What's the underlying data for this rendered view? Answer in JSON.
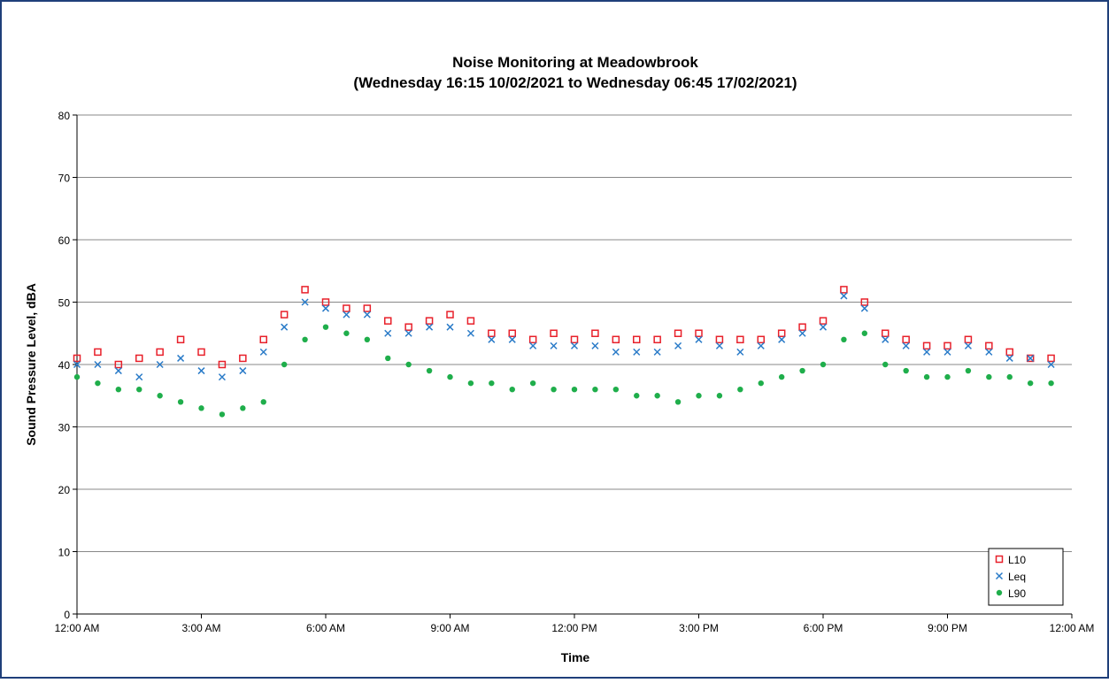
{
  "chart_data": {
    "type": "scatter",
    "title": "Noise Monitoring at Meadowbrook",
    "subtitle": "(Wednesday 16:15 10/02/2021 to Wednesday 06:45 17/02/2021)",
    "x_label": "Time",
    "y_label": "Sound Pressure Level, dBA",
    "xlim": [
      0,
      24
    ],
    "ylim": [
      0,
      80
    ],
    "xticks": [
      {
        "value": 0,
        "label": "12:00 AM"
      },
      {
        "value": 3,
        "label": "3:00 AM"
      },
      {
        "value": 6,
        "label": "6:00 AM"
      },
      {
        "value": 9,
        "label": "9:00 AM"
      },
      {
        "value": 12,
        "label": "12:00 PM"
      },
      {
        "value": 15,
        "label": "3:00 PM"
      },
      {
        "value": 18,
        "label": "6:00 PM"
      },
      {
        "value": 21,
        "label": "9:00 PM"
      },
      {
        "value": 24,
        "label": "12:00 AM"
      }
    ],
    "yticks": [
      0,
      10,
      20,
      30,
      40,
      50,
      60,
      70,
      80
    ],
    "grid": true,
    "legend": "bottom-right",
    "x": [
      0,
      0.5,
      1,
      1.5,
      2,
      2.5,
      3,
      3.5,
      4,
      4.5,
      5,
      5.5,
      6,
      6.5,
      7,
      7.5,
      8,
      8.5,
      9,
      9.5,
      10,
      10.5,
      11,
      11.5,
      12,
      12.5,
      13,
      13.5,
      14,
      14.5,
      15,
      15.5,
      16,
      16.5,
      17,
      17.5,
      18,
      18.5,
      19,
      19.5,
      20,
      20.5,
      21,
      21.5,
      22,
      22.5,
      23,
      23.5
    ],
    "series": [
      {
        "name": "L10",
        "color": "#e8202a",
        "marker": "square",
        "values": [
          41,
          42,
          40,
          41,
          42,
          44,
          42,
          40,
          41,
          44,
          48,
          52,
          50,
          49,
          49,
          47,
          46,
          47,
          48,
          47,
          45,
          45,
          44,
          45,
          44,
          45,
          44,
          44,
          44,
          45,
          45,
          44,
          44,
          44,
          45,
          46,
          47,
          52,
          50,
          45,
          44,
          43,
          43,
          44,
          43,
          42,
          41,
          41
        ]
      },
      {
        "name": "Leq",
        "color": "#2a7bc8",
        "marker": "x",
        "values": [
          40,
          40,
          39,
          38,
          40,
          41,
          39,
          38,
          39,
          42,
          46,
          50,
          49,
          48,
          48,
          45,
          45,
          46,
          46,
          45,
          44,
          44,
          43,
          43,
          43,
          43,
          42,
          42,
          42,
          43,
          44,
          43,
          42,
          43,
          44,
          45,
          46,
          51,
          49,
          44,
          43,
          42,
          42,
          43,
          42,
          41,
          41,
          40
        ]
      },
      {
        "name": "L90",
        "color": "#1fae4b",
        "marker": "dot",
        "values": [
          38,
          37,
          36,
          36,
          35,
          34,
          33,
          32,
          33,
          34,
          40,
          44,
          46,
          45,
          44,
          41,
          40,
          39,
          38,
          37,
          37,
          36,
          37,
          36,
          36,
          36,
          36,
          35,
          35,
          34,
          35,
          35,
          36,
          37,
          38,
          39,
          40,
          44,
          45,
          40,
          39,
          38,
          38,
          39,
          38,
          38,
          37,
          37
        ]
      }
    ]
  }
}
